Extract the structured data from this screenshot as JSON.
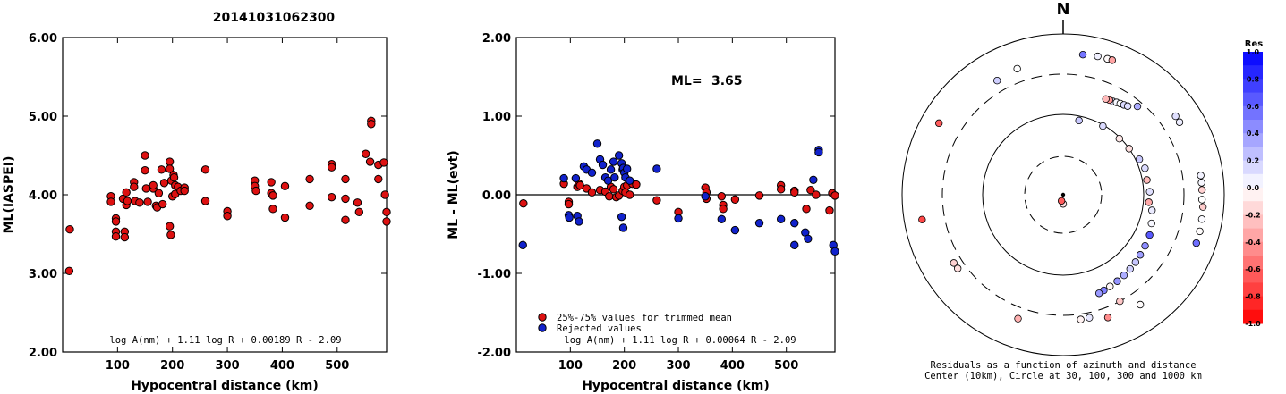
{
  "title": "20141031062300",
  "chart_data": [
    {
      "type": "scatter",
      "xlabel": "Hypocentral distance (km)",
      "ylabel": "ML(IASPEI)",
      "xlim": [
        0,
        590
      ],
      "ylim": [
        2.0,
        6.0
      ],
      "xticks": [
        "100",
        "200",
        "300",
        "400",
        "500"
      ],
      "yticks": [
        "2.00",
        "3.00",
        "4.00",
        "5.00",
        "6.00"
      ],
      "annotation": "log A(nm) + 1.11 log R + 0.00189 R - 2.09",
      "series": [
        {
          "color": "#dd1111",
          "points": [
            [
              13,
              3.56
            ],
            [
              12,
              3.03
            ],
            [
              88,
              3.98
            ],
            [
              88,
              3.91
            ],
            [
              97,
              3.7
            ],
            [
              97,
              3.66
            ],
            [
              97,
              3.53
            ],
            [
              97,
              3.47
            ],
            [
              110,
              3.95
            ],
            [
              113,
              3.53
            ],
            [
              113,
              3.46
            ],
            [
              116,
              3.87
            ],
            [
              116,
              4.03
            ],
            [
              118,
              3.92
            ],
            [
              130,
              4.16
            ],
            [
              130,
              4.1
            ],
            [
              132,
              3.92
            ],
            [
              140,
              3.9
            ],
            [
              150,
              4.5
            ],
            [
              150,
              4.31
            ],
            [
              152,
              4.08
            ],
            [
              155,
              3.91
            ],
            [
              165,
              4.08
            ],
            [
              165,
              4.12
            ],
            [
              170,
              3.86
            ],
            [
              172,
              3.84
            ],
            [
              175,
              4.02
            ],
            [
              180,
              4.32
            ],
            [
              182,
              3.88
            ],
            [
              185,
              4.15
            ],
            [
              195,
              4.42
            ],
            [
              195,
              4.33
            ],
            [
              195,
              3.6
            ],
            [
              197,
              3.49
            ],
            [
              198,
              4.18
            ],
            [
              200,
              3.98
            ],
            [
              202,
              4.25
            ],
            [
              203,
              4.22
            ],
            [
              205,
              4.12
            ],
            [
              205,
              4.01
            ],
            [
              210,
              4.1
            ],
            [
              215,
              4.05
            ],
            [
              222,
              4.09
            ],
            [
              222,
              4.05
            ],
            [
              260,
              4.32
            ],
            [
              260,
              3.92
            ],
            [
              300,
              3.79
            ],
            [
              300,
              3.73
            ],
            [
              350,
              4.18
            ],
            [
              350,
              4.11
            ],
            [
              352,
              4.05
            ],
            [
              380,
              4.16
            ],
            [
              380,
              4.02
            ],
            [
              383,
              3.99
            ],
            [
              383,
              3.82
            ],
            [
              405,
              4.11
            ],
            [
              405,
              3.71
            ],
            [
              450,
              4.2
            ],
            [
              450,
              3.86
            ],
            [
              490,
              4.39
            ],
            [
              490,
              4.35
            ],
            [
              490,
              3.97
            ],
            [
              515,
              4.2
            ],
            [
              515,
              3.68
            ],
            [
              515,
              3.95
            ],
            [
              537,
              3.9
            ],
            [
              540,
              3.78
            ],
            [
              552,
              4.52
            ],
            [
              560,
              4.42
            ],
            [
              562,
              4.94
            ],
            [
              562,
              4.9
            ],
            [
              575,
              4.2
            ],
            [
              575,
              4.38
            ],
            [
              585,
              4.41
            ],
            [
              587,
              4.0
            ],
            [
              590,
              3.78
            ],
            [
              590,
              3.66
            ]
          ]
        }
      ]
    },
    {
      "type": "scatter",
      "xlabel": "Hypocentral distance (km)",
      "ylabel": "ML - ML(evt)",
      "xlim": [
        0,
        590
      ],
      "ylim": [
        -2.0,
        2.0
      ],
      "xticks": [
        "100",
        "200",
        "300",
        "400",
        "500"
      ],
      "yticks": [
        "-2.00",
        "-1.00",
        "0.00",
        "1.00",
        "2.00"
      ],
      "ml_label": "ML=",
      "ml_value": "3.65",
      "annotation": "log A(nm) + 1.11 log R + 0.00064 R - 2.09",
      "legend": [
        {
          "label": "25%-75% values for trimmed mean",
          "color": "#dd1111"
        },
        {
          "label": "Rejected values",
          "color": "#1122cc"
        }
      ],
      "series": [
        {
          "color": "#dd1111",
          "points": [
            [
              13,
              -0.11
            ],
            [
              88,
              0.14
            ],
            [
              97,
              -0.09
            ],
            [
              97,
              -0.12
            ],
            [
              113,
              0.1
            ],
            [
              116,
              0.14
            ],
            [
              118,
              0.12
            ],
            [
              130,
              0.08
            ],
            [
              140,
              0.03
            ],
            [
              155,
              0.06
            ],
            [
              165,
              0.04
            ],
            [
              172,
              -0.02
            ],
            [
              175,
              0.1
            ],
            [
              180,
              0.07
            ],
            [
              185,
              -0.03
            ],
            [
              190,
              -0.01
            ],
            [
              197,
              0.05
            ],
            [
              200,
              0.1
            ],
            [
              202,
              0.03
            ],
            [
              205,
              0.12
            ],
            [
              210,
              0.0
            ],
            [
              215,
              0.14
            ],
            [
              222,
              0.13
            ],
            [
              260,
              -0.07
            ],
            [
              300,
              -0.22
            ],
            [
              350,
              0.09
            ],
            [
              352,
              0.03
            ],
            [
              352,
              -0.05
            ],
            [
              380,
              -0.02
            ],
            [
              383,
              -0.13
            ],
            [
              383,
              -0.18
            ],
            [
              405,
              -0.06
            ],
            [
              450,
              -0.01
            ],
            [
              490,
              0.12
            ],
            [
              490,
              0.07
            ],
            [
              515,
              0.05
            ],
            [
              515,
              0.03
            ],
            [
              537,
              -0.18
            ],
            [
              545,
              0.06
            ],
            [
              555,
              0.0
            ],
            [
              580,
              -0.2
            ],
            [
              585,
              0.02
            ],
            [
              590,
              -0.01
            ]
          ]
        },
        {
          "color": "#1122cc",
          "points": [
            [
              12,
              -0.64
            ],
            [
              88,
              0.21
            ],
            [
              97,
              -0.26
            ],
            [
              98,
              -0.29
            ],
            [
              110,
              0.21
            ],
            [
              113,
              -0.27
            ],
            [
              116,
              -0.34
            ],
            [
              125,
              0.36
            ],
            [
              130,
              0.32
            ],
            [
              140,
              0.28
            ],
            [
              150,
              0.65
            ],
            [
              155,
              0.45
            ],
            [
              160,
              0.38
            ],
            [
              165,
              0.22
            ],
            [
              170,
              0.18
            ],
            [
              175,
              0.32
            ],
            [
              180,
              0.42
            ],
            [
              182,
              0.22
            ],
            [
              190,
              0.5
            ],
            [
              195,
              0.4
            ],
            [
              197,
              0.32
            ],
            [
              198,
              0.34
            ],
            [
              200,
              0.28
            ],
            [
              202,
              0.22
            ],
            [
              205,
              0.33
            ],
            [
              210,
              0.18
            ],
            [
              195,
              -0.28
            ],
            [
              198,
              -0.42
            ],
            [
              260,
              0.33
            ],
            [
              300,
              -0.3
            ],
            [
              350,
              -0.02
            ],
            [
              380,
              -0.31
            ],
            [
              405,
              -0.45
            ],
            [
              450,
              -0.36
            ],
            [
              490,
              -0.31
            ],
            [
              515,
              -0.36
            ],
            [
              515,
              -0.64
            ],
            [
              535,
              -0.48
            ],
            [
              540,
              -0.56
            ],
            [
              550,
              0.19
            ],
            [
              560,
              0.57
            ],
            [
              560,
              0.54
            ],
            [
              587,
              -0.64
            ],
            [
              590,
              -0.72
            ]
          ]
        }
      ]
    },
    {
      "type": "polar-scatter",
      "north_label": "N",
      "caption_line1": "Residuals as a function of azimuth and distance",
      "caption_line2": "Center (10km), Circle at 30, 100, 300 and 1000 km",
      "colorbar_title": "Res",
      "colorbar_ticks": [
        "1.0",
        "0.8",
        "0.6",
        "0.4",
        "0.2",
        "0.0",
        "-0.2",
        "-0.4",
        "-0.6",
        "-0.8",
        "-1.0"
      ],
      "points_note": "azimuth in degrees clockwise from north, distance in km, residual value",
      "points": [
        [
          180,
          13,
          -0.11
        ],
        [
          195,
          12,
          -0.64
        ],
        [
          12,
          88,
          0.21
        ],
        [
          30,
          97,
          0.14
        ],
        [
          45,
          97,
          -0.09
        ],
        [
          55,
          100,
          -0.12
        ],
        [
          65,
          110,
          0.21
        ],
        [
          72,
          116,
          0.14
        ],
        [
          80,
          113,
          -0.27
        ],
        [
          88,
          118,
          0.12
        ],
        [
          95,
          116,
          -0.34
        ],
        [
          100,
          130,
          0.08
        ],
        [
          108,
          140,
          0.03
        ],
        [
          115,
          150,
          0.65
        ],
        [
          122,
          155,
          0.45
        ],
        [
          128,
          160,
          0.38
        ],
        [
          133,
          165,
          0.22
        ],
        [
          138,
          170,
          0.18
        ],
        [
          143,
          175,
          0.32
        ],
        [
          148,
          180,
          0.42
        ],
        [
          153,
          185,
          -0.03
        ],
        [
          157,
          190,
          0.5
        ],
        [
          160,
          195,
          0.4
        ],
        [
          28,
          200,
          0.1
        ],
        [
          30,
          205,
          0.03
        ],
        [
          32,
          210,
          0.0
        ],
        [
          34,
          215,
          0.14
        ],
        [
          36,
          222,
          0.13
        ],
        [
          26,
          198,
          -0.42
        ],
        [
          24,
          195,
          -0.28
        ],
        [
          40,
          260,
          0.33
        ],
        [
          152,
          300,
          -0.22
        ],
        [
          168,
          350,
          0.09
        ],
        [
          172,
          352,
          -0.05
        ],
        [
          235,
          380,
          -0.13
        ],
        [
          238,
          383,
          -0.18
        ],
        [
          160,
          405,
          -0.45
        ],
        [
          145,
          450,
          -0.01
        ],
        [
          55,
          490,
          0.12
        ],
        [
          58,
          490,
          0.07
        ],
        [
          82,
          515,
          0.05
        ],
        [
          85,
          515,
          0.03
        ],
        [
          88,
          515,
          -0.18
        ],
        [
          92,
          515,
          0.0
        ],
        [
          95,
          537,
          -0.2
        ],
        [
          100,
          545,
          0.02
        ],
        [
          105,
          555,
          -0.01
        ],
        [
          110,
          560,
          0.57
        ],
        [
          8,
          560,
          0.54
        ],
        [
          14,
          580,
          0.06
        ],
        [
          18,
          585,
          -0.02
        ],
        [
          20,
          590,
          -0.36
        ],
        [
          340,
          450,
          0.0
        ],
        [
          330,
          420,
          0.19
        ],
        [
          300,
          590,
          -0.64
        ],
        [
          260,
          587,
          -0.72
        ],
        [
          200,
          420,
          -0.31
        ]
      ]
    }
  ]
}
